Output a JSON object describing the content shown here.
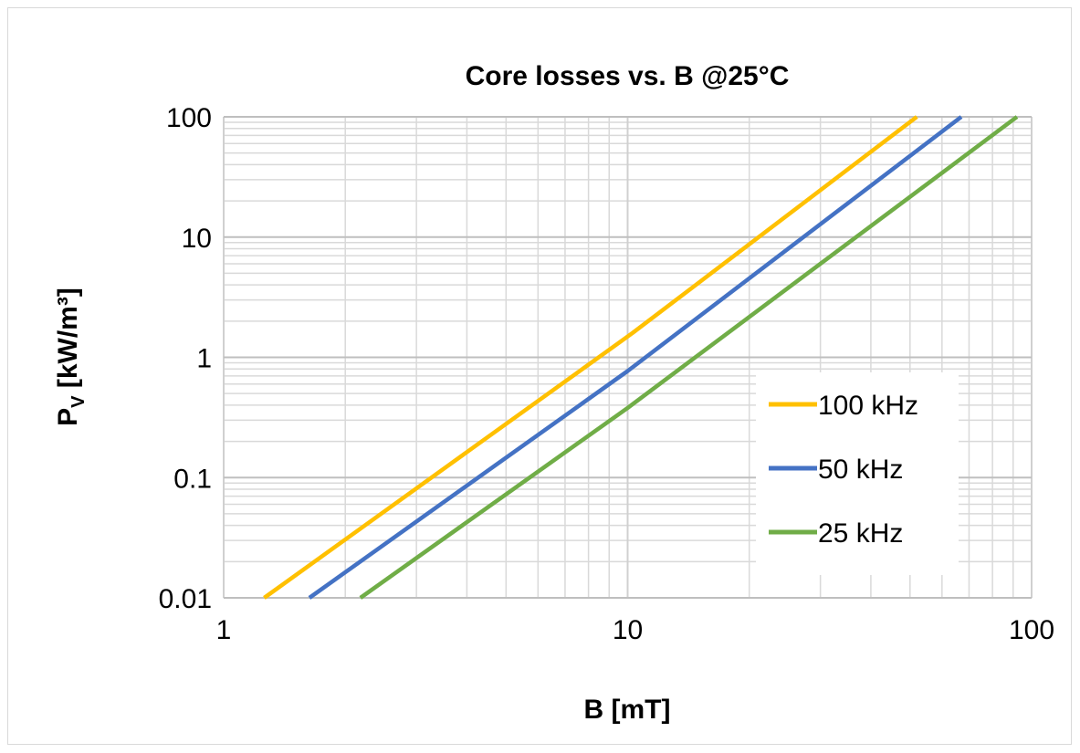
{
  "chart_data": {
    "type": "line",
    "title": "Core losses vs. B @25°C",
    "xlabel": "B [mT]",
    "ylabel_main": "P",
    "ylabel_sub": "V",
    "ylabel_rest": " [kW/m³]",
    "x_scale": "log",
    "y_scale": "log",
    "xlim": [
      1,
      100
    ],
    "ylim": [
      0.01,
      100
    ],
    "x_ticks": [
      "1",
      "10",
      "100"
    ],
    "y_ticks": [
      "100",
      "10",
      "1",
      "0.1",
      "0.01"
    ],
    "grid": true,
    "legend_position": "bottom-right",
    "series": [
      {
        "name": "100 kHz",
        "color": "#FFC000",
        "x": [
          1.26,
          10.3,
          52.0
        ],
        "y": [
          0.01,
          1.6,
          100
        ]
      },
      {
        "name": "50 kHz",
        "color": "#4472C4",
        "x": [
          1.63,
          10.0,
          67.0
        ],
        "y": [
          0.01,
          0.77,
          100
        ]
      },
      {
        "name": "25 kHz",
        "color": "#70AD47",
        "x": [
          2.18,
          10.0,
          92.0
        ],
        "y": [
          0.01,
          0.38,
          100
        ]
      }
    ]
  }
}
